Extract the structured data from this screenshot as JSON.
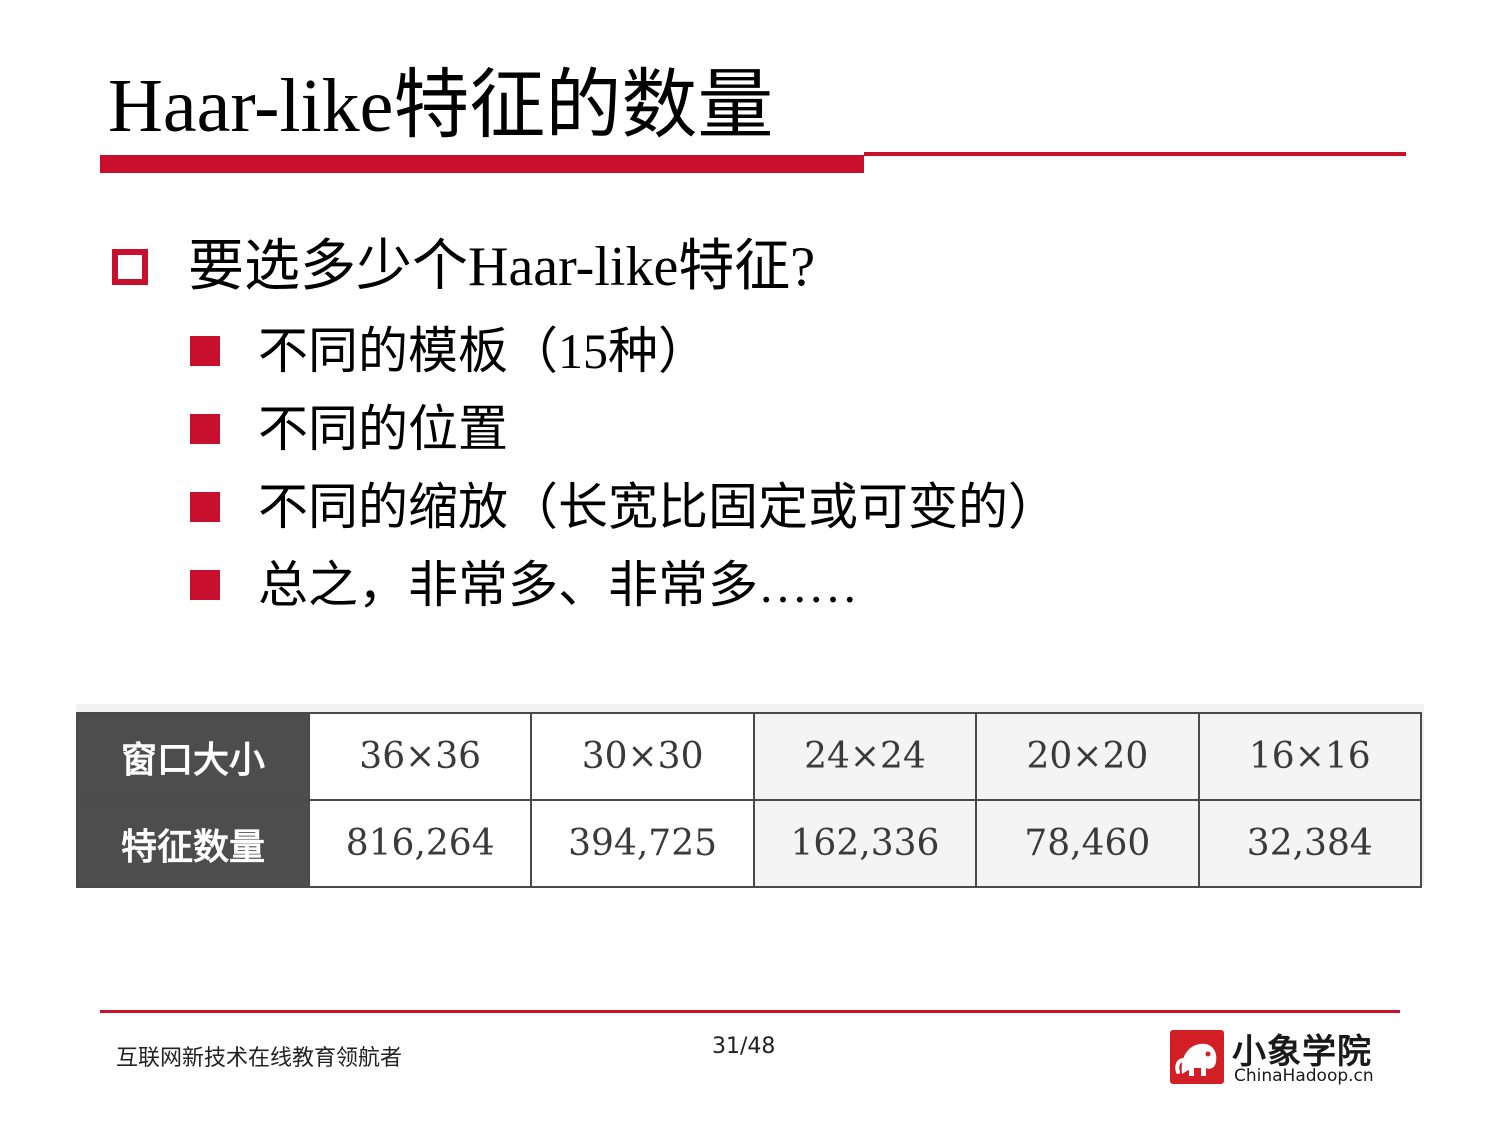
{
  "slide": {
    "title": "Haar-like特征的数量",
    "main_bullet": "要选多少个Haar-like特征?",
    "sub_bullets": [
      "不同的模板（15种）",
      "不同的位置",
      "不同的缩放（长宽比固定或可变的）",
      "总之，非常多、非常多……"
    ]
  },
  "table": {
    "rows": [
      {
        "header": "窗口大小",
        "cells": [
          "36×36",
          "30×30",
          "24×24",
          "20×20",
          "16×16"
        ]
      },
      {
        "header": "特征数量",
        "cells": [
          "816,264",
          "394,725",
          "162,336",
          "78,460",
          "32,384"
        ]
      }
    ]
  },
  "footer": {
    "tagline": "互联网新技术在线教育领航者",
    "page_number": "31/48",
    "logo_name": "小象学院",
    "logo_domain": "ChinaHadoop.cn"
  },
  "colors": {
    "accent": "#c8102e",
    "table_header": "#4d4d4d"
  }
}
